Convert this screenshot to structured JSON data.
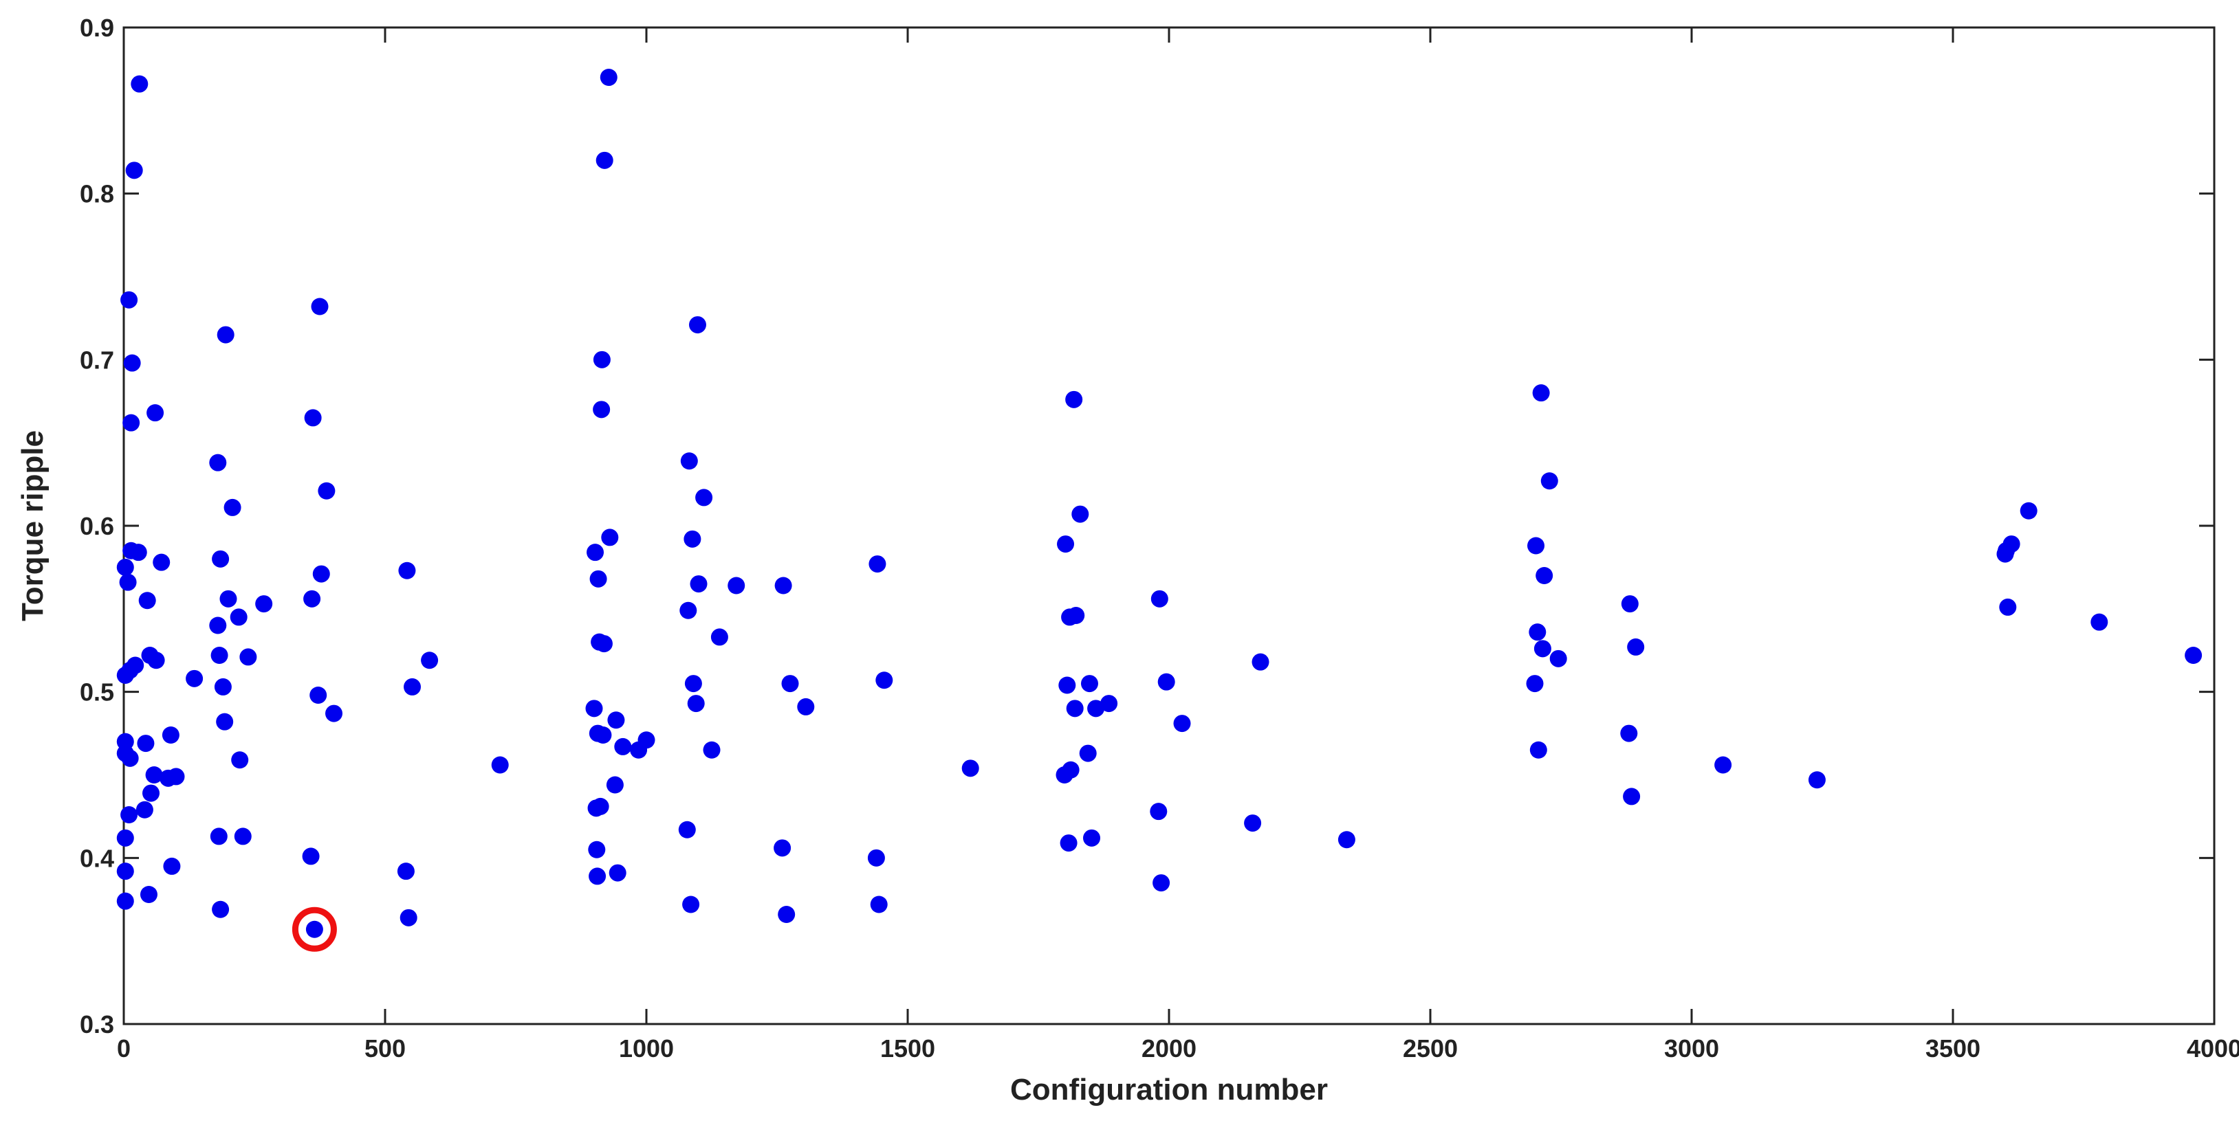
{
  "chart_data": {
    "type": "scatter",
    "xlabel": "Configuration number",
    "ylabel": "Torque ripple",
    "xlim": [
      0,
      4000
    ],
    "ylim": [
      0.3,
      0.9
    ],
    "x_ticks": [
      0,
      500,
      1000,
      1500,
      2000,
      2500,
      3000,
      3500,
      4000
    ],
    "y_ticks": [
      0.3,
      0.4,
      0.5,
      0.6,
      0.7,
      0.8,
      0.9
    ],
    "grid": false,
    "colors": {
      "marker": "#0000ee",
      "highlight": "#ee1111",
      "axis": "#222222"
    },
    "highlight": {
      "x": 365,
      "y": 0.357
    },
    "points": [
      {
        "x": 3,
        "y": 0.374
      },
      {
        "x": 3,
        "y": 0.392
      },
      {
        "x": 3,
        "y": 0.412
      },
      {
        "x": 3,
        "y": 0.463
      },
      {
        "x": 3,
        "y": 0.47
      },
      {
        "x": 3,
        "y": 0.51
      },
      {
        "x": 3,
        "y": 0.575
      },
      {
        "x": 8,
        "y": 0.566
      },
      {
        "x": 10,
        "y": 0.736
      },
      {
        "x": 10,
        "y": 0.426
      },
      {
        "x": 12,
        "y": 0.46
      },
      {
        "x": 12,
        "y": 0.513
      },
      {
        "x": 14,
        "y": 0.585
      },
      {
        "x": 14,
        "y": 0.662
      },
      {
        "x": 16,
        "y": 0.698
      },
      {
        "x": 20,
        "y": 0.814
      },
      {
        "x": 22,
        "y": 0.516
      },
      {
        "x": 28,
        "y": 0.584
      },
      {
        "x": 30,
        "y": 0.866
      },
      {
        "x": 40,
        "y": 0.429
      },
      {
        "x": 42,
        "y": 0.469
      },
      {
        "x": 45,
        "y": 0.555
      },
      {
        "x": 48,
        "y": 0.378
      },
      {
        "x": 50,
        "y": 0.522
      },
      {
        "x": 52,
        "y": 0.439
      },
      {
        "x": 58,
        "y": 0.45
      },
      {
        "x": 60,
        "y": 0.668
      },
      {
        "x": 62,
        "y": 0.519
      },
      {
        "x": 72,
        "y": 0.578
      },
      {
        "x": 85,
        "y": 0.448
      },
      {
        "x": 90,
        "y": 0.474
      },
      {
        "x": 92,
        "y": 0.395
      },
      {
        "x": 100,
        "y": 0.449
      },
      {
        "x": 135,
        "y": 0.508
      },
      {
        "x": 180,
        "y": 0.638
      },
      {
        "x": 180,
        "y": 0.54
      },
      {
        "x": 182,
        "y": 0.413
      },
      {
        "x": 183,
        "y": 0.522
      },
      {
        "x": 185,
        "y": 0.58
      },
      {
        "x": 185,
        "y": 0.369
      },
      {
        "x": 190,
        "y": 0.503
      },
      {
        "x": 193,
        "y": 0.482
      },
      {
        "x": 195,
        "y": 0.715
      },
      {
        "x": 200,
        "y": 0.556
      },
      {
        "x": 208,
        "y": 0.611
      },
      {
        "x": 220,
        "y": 0.545
      },
      {
        "x": 222,
        "y": 0.459
      },
      {
        "x": 228,
        "y": 0.413
      },
      {
        "x": 238,
        "y": 0.521
      },
      {
        "x": 268,
        "y": 0.553
      },
      {
        "x": 358,
        "y": 0.401
      },
      {
        "x": 360,
        "y": 0.556
      },
      {
        "x": 362,
        "y": 0.665
      },
      {
        "x": 365,
        "y": 0.357
      },
      {
        "x": 372,
        "y": 0.498
      },
      {
        "x": 375,
        "y": 0.732
      },
      {
        "x": 378,
        "y": 0.571
      },
      {
        "x": 388,
        "y": 0.621
      },
      {
        "x": 402,
        "y": 0.487
      },
      {
        "x": 540,
        "y": 0.392
      },
      {
        "x": 542,
        "y": 0.573
      },
      {
        "x": 545,
        "y": 0.364
      },
      {
        "x": 552,
        "y": 0.503
      },
      {
        "x": 585,
        "y": 0.519
      },
      {
        "x": 720,
        "y": 0.456
      },
      {
        "x": 900,
        "y": 0.49
      },
      {
        "x": 902,
        "y": 0.584
      },
      {
        "x": 904,
        "y": 0.43
      },
      {
        "x": 905,
        "y": 0.405
      },
      {
        "x": 906,
        "y": 0.389
      },
      {
        "x": 907,
        "y": 0.475
      },
      {
        "x": 908,
        "y": 0.568
      },
      {
        "x": 910,
        "y": 0.53
      },
      {
        "x": 912,
        "y": 0.431
      },
      {
        "x": 914,
        "y": 0.67
      },
      {
        "x": 915,
        "y": 0.7
      },
      {
        "x": 917,
        "y": 0.474
      },
      {
        "x": 919,
        "y": 0.529
      },
      {
        "x": 920,
        "y": 0.82
      },
      {
        "x": 928,
        "y": 0.87
      },
      {
        "x": 930,
        "y": 0.593
      },
      {
        "x": 940,
        "y": 0.444
      },
      {
        "x": 942,
        "y": 0.483
      },
      {
        "x": 945,
        "y": 0.391
      },
      {
        "x": 955,
        "y": 0.467
      },
      {
        "x": 985,
        "y": 0.465
      },
      {
        "x": 1000,
        "y": 0.471
      },
      {
        "x": 1078,
        "y": 0.417
      },
      {
        "x": 1080,
        "y": 0.549
      },
      {
        "x": 1082,
        "y": 0.639
      },
      {
        "x": 1085,
        "y": 0.372
      },
      {
        "x": 1088,
        "y": 0.592
      },
      {
        "x": 1090,
        "y": 0.505
      },
      {
        "x": 1095,
        "y": 0.493
      },
      {
        "x": 1098,
        "y": 0.721
      },
      {
        "x": 1100,
        "y": 0.565
      },
      {
        "x": 1110,
        "y": 0.617
      },
      {
        "x": 1125,
        "y": 0.465
      },
      {
        "x": 1140,
        "y": 0.533
      },
      {
        "x": 1172,
        "y": 0.564
      },
      {
        "x": 1260,
        "y": 0.406
      },
      {
        "x": 1262,
        "y": 0.564
      },
      {
        "x": 1268,
        "y": 0.366
      },
      {
        "x": 1275,
        "y": 0.505
      },
      {
        "x": 1305,
        "y": 0.491
      },
      {
        "x": 1440,
        "y": 0.4
      },
      {
        "x": 1442,
        "y": 0.577
      },
      {
        "x": 1445,
        "y": 0.372
      },
      {
        "x": 1455,
        "y": 0.507
      },
      {
        "x": 1620,
        "y": 0.454
      },
      {
        "x": 1800,
        "y": 0.45
      },
      {
        "x": 1802,
        "y": 0.589
      },
      {
        "x": 1805,
        "y": 0.504
      },
      {
        "x": 1808,
        "y": 0.409
      },
      {
        "x": 1810,
        "y": 0.545
      },
      {
        "x": 1812,
        "y": 0.453
      },
      {
        "x": 1818,
        "y": 0.676
      },
      {
        "x": 1820,
        "y": 0.49
      },
      {
        "x": 1822,
        "y": 0.546
      },
      {
        "x": 1830,
        "y": 0.607
      },
      {
        "x": 1845,
        "y": 0.463
      },
      {
        "x": 1848,
        "y": 0.505
      },
      {
        "x": 1852,
        "y": 0.412
      },
      {
        "x": 1860,
        "y": 0.49
      },
      {
        "x": 1885,
        "y": 0.493
      },
      {
        "x": 1980,
        "y": 0.428
      },
      {
        "x": 1982,
        "y": 0.556
      },
      {
        "x": 1985,
        "y": 0.385
      },
      {
        "x": 1995,
        "y": 0.506
      },
      {
        "x": 2025,
        "y": 0.481
      },
      {
        "x": 2160,
        "y": 0.421
      },
      {
        "x": 2175,
        "y": 0.518
      },
      {
        "x": 2340,
        "y": 0.411
      },
      {
        "x": 2700,
        "y": 0.505
      },
      {
        "x": 2702,
        "y": 0.588
      },
      {
        "x": 2705,
        "y": 0.536
      },
      {
        "x": 2707,
        "y": 0.465
      },
      {
        "x": 2712,
        "y": 0.68
      },
      {
        "x": 2715,
        "y": 0.526
      },
      {
        "x": 2718,
        "y": 0.57
      },
      {
        "x": 2728,
        "y": 0.627
      },
      {
        "x": 2745,
        "y": 0.52
      },
      {
        "x": 2880,
        "y": 0.475
      },
      {
        "x": 2882,
        "y": 0.553
      },
      {
        "x": 2885,
        "y": 0.437
      },
      {
        "x": 2893,
        "y": 0.527
      },
      {
        "x": 3060,
        "y": 0.456
      },
      {
        "x": 3240,
        "y": 0.447
      },
      {
        "x": 3600,
        "y": 0.583
      },
      {
        "x": 3602,
        "y": 0.585
      },
      {
        "x": 3605,
        "y": 0.551
      },
      {
        "x": 3612,
        "y": 0.589
      },
      {
        "x": 3645,
        "y": 0.609
      },
      {
        "x": 3780,
        "y": 0.542
      },
      {
        "x": 3960,
        "y": 0.522
      }
    ]
  }
}
